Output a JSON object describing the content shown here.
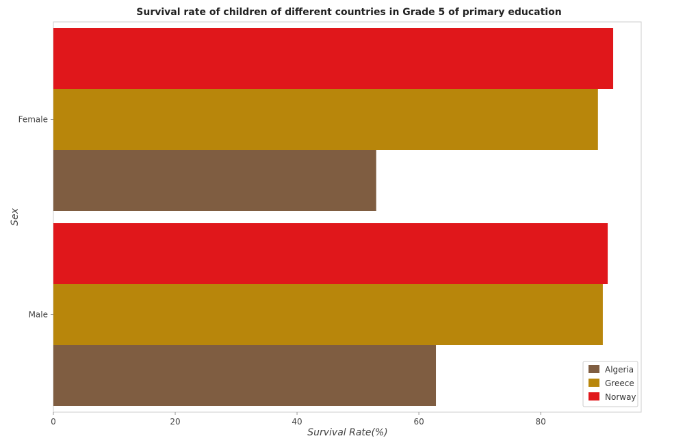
{
  "chart_data": {
    "type": "bar",
    "orientation": "horizontal",
    "title": "Survival rate of children of different countries in Grade 5 of primary education",
    "xlabel": "Survival Rate(%)",
    "ylabel": "Sex",
    "categories": [
      "Female",
      "Male"
    ],
    "series": [
      {
        "name": "Algeria",
        "color": "#7f5d41",
        "values": [
          53.0,
          62.8
        ]
      },
      {
        "name": "Greece",
        "color": "#b8860b",
        "values": [
          89.4,
          90.2
        ]
      },
      {
        "name": "Norway",
        "color": "#e0171b",
        "values": [
          91.9,
          91.0
        ]
      }
    ],
    "xlim": [
      0,
      96.5
    ],
    "xticks": [
      0,
      20,
      40,
      60,
      80
    ],
    "xtick_labels": [
      "0",
      "20",
      "40",
      "60",
      "80"
    ],
    "grid": false,
    "legend_position": "bottom-right"
  }
}
